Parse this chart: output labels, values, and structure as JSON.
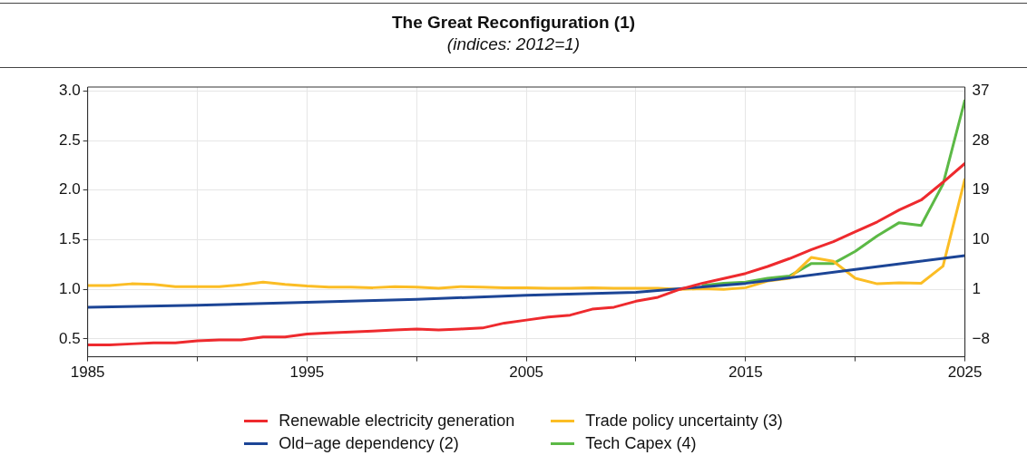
{
  "chart_data": {
    "type": "line",
    "title": "The Great Reconfiguration (1)",
    "subtitle": "(indices: 2012=1)",
    "xlim": [
      1985,
      2025
    ],
    "xticks": [
      1985,
      {
        "value": 1990,
        "label": null
      },
      1995,
      {
        "value": 2000,
        "label": null
      },
      2005,
      {
        "value": 2010,
        "label": null
      },
      2015,
      {
        "value": 2020,
        "label": null
      },
      2025
    ],
    "ylim": [
      0.32,
      3.04
    ],
    "yticks": [
      {
        "value": 0.5,
        "label": "0.5"
      },
      {
        "value": 1,
        "label": "1.0"
      },
      {
        "value": 1.5,
        "label": "1.5"
      },
      {
        "value": 2,
        "label": "2.0"
      },
      {
        "value": 2.5,
        "label": "2.5"
      },
      {
        "value": 3,
        "label": "3.0"
      }
    ],
    "y2lim": [
      -11.24,
      37.72
    ],
    "y2ticks": [
      {
        "value": -8,
        "label": "−8"
      },
      1,
      10,
      19,
      28,
      37
    ],
    "grid": true,
    "legend": "bottom",
    "line_style": "solid",
    "marker": "none",
    "series": [
      {
        "name": "Renewable electricity generation",
        "color": "#ee2a2e",
        "x": [
          1985,
          1986,
          1987,
          1988,
          1989,
          1990,
          1991,
          1992,
          1993,
          1994,
          1995,
          1996,
          1997,
          1998,
          1999,
          2000,
          2001,
          2002,
          2003,
          2004,
          2005,
          2006,
          2007,
          2008,
          2009,
          2010,
          2011,
          2012,
          2013,
          2014,
          2015,
          2016,
          2017,
          2018,
          2019,
          2020,
          2021,
          2022,
          2023,
          2024,
          2025
        ],
        "values": [
          0.44,
          0.44,
          0.45,
          0.46,
          0.46,
          0.48,
          0.49,
          0.49,
          0.52,
          0.52,
          0.55,
          0.56,
          0.57,
          0.58,
          0.59,
          0.6,
          0.59,
          0.6,
          0.61,
          0.66,
          0.69,
          0.72,
          0.74,
          0.8,
          0.82,
          0.88,
          0.92,
          1.0,
          1.06,
          1.11,
          1.16,
          1.23,
          1.31,
          1.4,
          1.48,
          1.58,
          1.68,
          1.8,
          1.9,
          2.08,
          2.27
        ]
      },
      {
        "name": "Old−age dependency (2)",
        "color": "#1c4596",
        "x": [
          1985,
          1990,
          1995,
          2000,
          2005,
          2010,
          2015,
          2020,
          2025
        ],
        "values": [
          0.82,
          0.84,
          0.87,
          0.9,
          0.94,
          0.97,
          1.06,
          1.2,
          1.34
        ]
      },
      {
        "name": "Trade policy uncertainty (3)",
        "color": "#fbbd25",
        "axis": "y2",
        "x": [
          1985,
          1986,
          1987,
          1988,
          1989,
          1990,
          1991,
          1992,
          1993,
          1994,
          1995,
          1996,
          1997,
          1998,
          1999,
          2000,
          2001,
          2002,
          2003,
          2004,
          2005,
          2006,
          2007,
          2008,
          2009,
          2010,
          2011,
          2012,
          2013,
          2014,
          2015,
          2016,
          2017,
          2018,
          2019,
          2020,
          2021,
          2022,
          2023,
          2024,
          2025
        ],
        "values": [
          1.7,
          1.7,
          2.0,
          1.9,
          1.5,
          1.5,
          1.5,
          1.8,
          2.3,
          1.9,
          1.6,
          1.4,
          1.4,
          1.3,
          1.5,
          1.4,
          1.2,
          1.5,
          1.4,
          1.3,
          1.3,
          1.2,
          1.2,
          1.3,
          1.2,
          1.2,
          1.2,
          1.0,
          1.1,
          1.0,
          1.3,
          2.5,
          3.0,
          6.8,
          6.1,
          3.0,
          2.0,
          2.2,
          2.1,
          5.2,
          21.1
        ]
      },
      {
        "name": "Tech Capex (4)",
        "color": "#5cb946",
        "axis": "y2",
        "x": [
          2013,
          2014,
          2015,
          2016,
          2017,
          2018,
          2019,
          2020,
          2021,
          2022,
          2023,
          2024,
          2025
        ],
        "values": [
          1.7,
          2.1,
          2.3,
          3.0,
          3.4,
          5.7,
          5.7,
          7.9,
          10.7,
          13.1,
          12.6,
          20.1,
          35.4
        ]
      }
    ]
  }
}
